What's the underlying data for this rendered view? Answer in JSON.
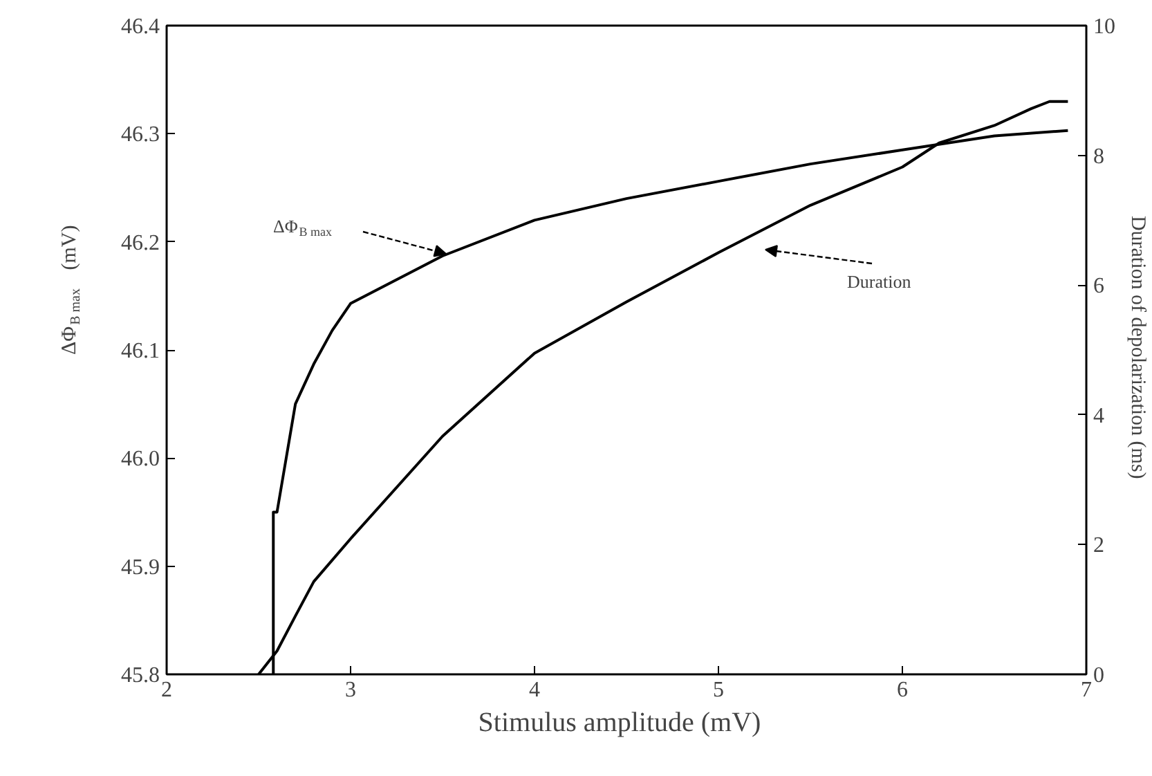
{
  "chart_data": {
    "type": "line",
    "xlabel": "Stimulus amplitude   (mV)",
    "ylabel": "ΔΦ$_{B max}$   (mV)",
    "y2label": "Duration of depolarization  (ms)",
    "xlim": [
      2,
      7
    ],
    "xticks": [
      2,
      3,
      4,
      5,
      6,
      7
    ],
    "ylim": [
      45.8,
      46.4
    ],
    "yticks": [
      {
        "value": 45.8,
        "label": "45.8"
      },
      {
        "value": 45.9,
        "label": "45.9"
      },
      {
        "value": 46.0,
        "label": "46.0"
      },
      {
        "value": 46.1,
        "label": "46.1"
      },
      {
        "value": 46.2,
        "label": "46.2"
      },
      {
        "value": 46.3,
        "label": "46.3"
      },
      {
        "value": 46.4,
        "label": "46.4"
      }
    ],
    "y2lim": [
      0,
      10
    ],
    "y2ticks": [
      0,
      2,
      4,
      6,
      8,
      10
    ],
    "grid": false,
    "marker": "none",
    "line_style": "solid",
    "series": [
      {
        "color": "#000000",
        "x": [
          2.58,
          2.58,
          2.6,
          2.7,
          2.8,
          2.9,
          3.0,
          3.5,
          4.0,
          4.5,
          5.0,
          5.5,
          6.0,
          6.5,
          6.9
        ],
        "values": [
          45.8,
          45.95,
          45.95,
          46.05,
          46.087,
          46.118,
          46.143,
          46.187,
          46.22,
          46.24,
          46.256,
          46.272,
          46.285,
          46.298,
          46.303
        ]
      },
      {
        "color": "#000000",
        "axis": "y2",
        "x": [
          2.5,
          2.6,
          2.7,
          2.8,
          3.0,
          3.5,
          4.0,
          4.5,
          5.0,
          5.5,
          6.0,
          6.2,
          6.5,
          6.7,
          6.8,
          6.9
        ],
        "values": [
          0,
          0.36,
          0.9,
          1.43,
          2.09,
          3.67,
          4.95,
          5.74,
          6.5,
          7.23,
          7.82,
          8.19,
          8.46,
          8.72,
          8.83,
          8.83
        ]
      }
    ],
    "annotations": [
      "ΔΦ$_{B max}$",
      "Duration"
    ]
  }
}
